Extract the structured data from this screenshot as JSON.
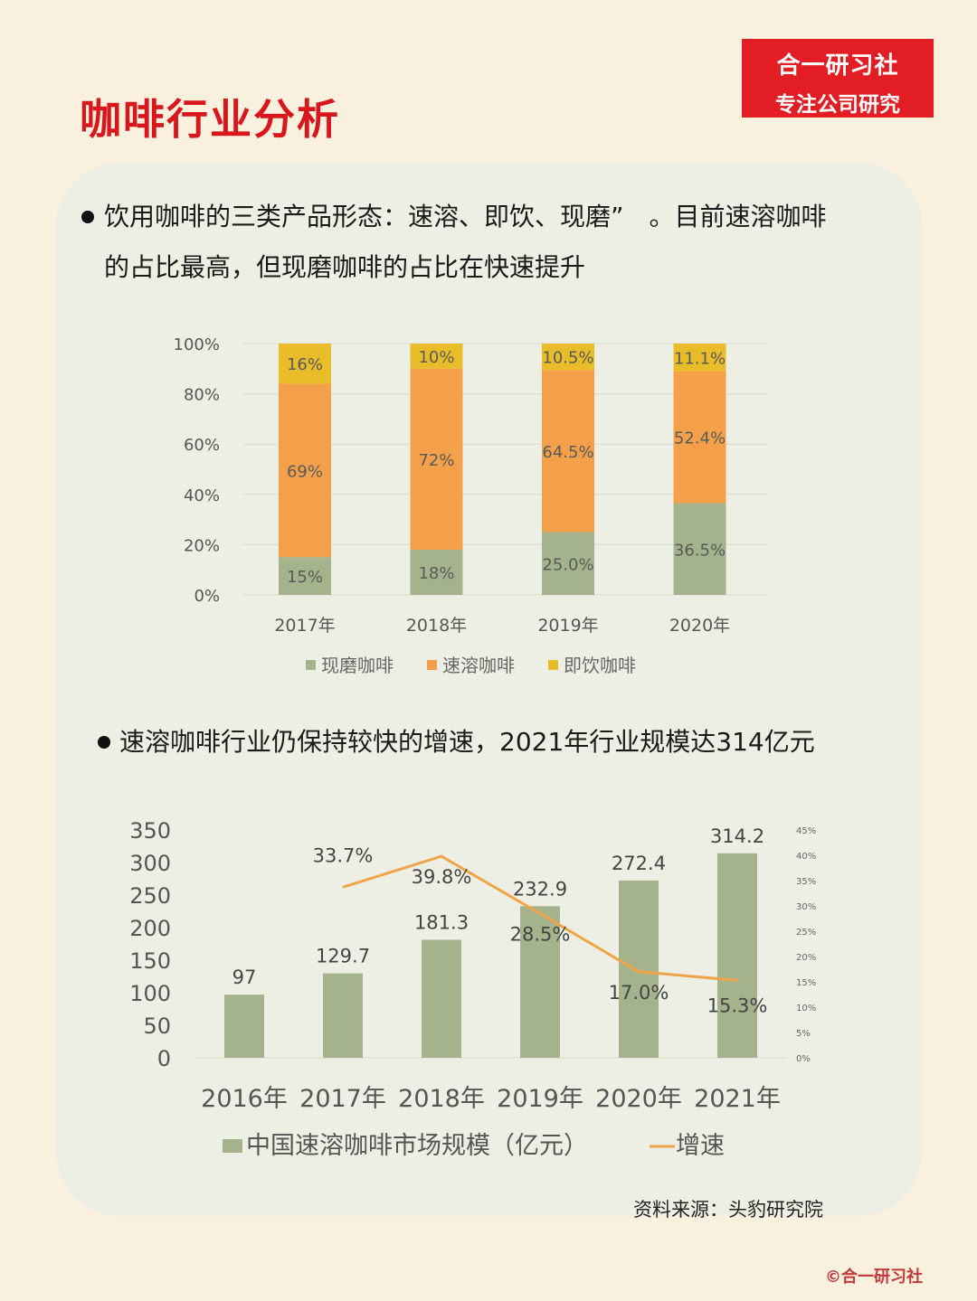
{
  "header": {
    "title": "咖啡行业分析",
    "brand_line1": "合一研习社",
    "brand_line2": "专注公司研究"
  },
  "section1": {
    "text_line1": "饮用咖啡的三类产品形态：速溶、即饮、现磨”　。目前速溶咖啡",
    "text_line2": "的占比最高，但现磨咖啡的占比在快速提升"
  },
  "section2": {
    "text": "速溶咖啡行业仍保持较快的增速，2021年行业规模达314亿元"
  },
  "footer": {
    "source": "资料来源：头豹研究院",
    "copyright": "©合一研习社"
  },
  "colors": {
    "accent_red": "#d9161c",
    "green": "#a4b38b",
    "orange": "#f4a04a",
    "yellow": "#e9bd2a",
    "line_orange": "#f0a347"
  },
  "chart_data": [
    {
      "type": "bar",
      "stacked": true,
      "percent_stacked": true,
      "categories": [
        "2017年",
        "2018年",
        "2019年",
        "2020年"
      ],
      "series": [
        {
          "name": "现磨咖啡",
          "values": [
            15,
            18,
            25.0,
            36.5
          ],
          "labels": [
            "15%",
            "18%",
            "25.0%",
            "36.5%"
          ],
          "color": "#a4b38b"
        },
        {
          "name": "速溶咖啡",
          "values": [
            69,
            72,
            64.5,
            52.4
          ],
          "labels": [
            "69%",
            "72%",
            "64.5%",
            "52.4%"
          ],
          "color": "#f4a04a"
        },
        {
          "name": "即饮咖啡",
          "values": [
            16,
            10,
            10.5,
            11.1
          ],
          "labels": [
            "16%",
            "10%",
            "10.5%",
            "11.1%"
          ],
          "color": "#e9bd2a"
        }
      ],
      "ylim": [
        0,
        100
      ],
      "yticks": [
        "0%",
        "20%",
        "40%",
        "60%",
        "80%",
        "100%"
      ],
      "grid": true,
      "legend": "bottom"
    },
    {
      "type": "bar",
      "categories": [
        "2016年",
        "2017年",
        "2018年",
        "2019年",
        "2020年",
        "2021年"
      ],
      "series": [
        {
          "name": "中国速溶咖啡市场规模（亿元）",
          "values": [
            97,
            129.7,
            181.3,
            232.9,
            272.4,
            314.2
          ],
          "labels": [
            "97",
            "129.7",
            "181.3",
            "232.9",
            "272.4",
            "314.2"
          ],
          "color": "#a4b38b"
        },
        {
          "name": "增速",
          "type": "line",
          "axis": "right",
          "values": [
            null,
            33.7,
            39.8,
            28.5,
            17.0,
            15.3
          ],
          "labels": [
            "",
            "33.7%",
            "39.8%",
            "28.5%",
            "17.0%",
            "15.3%"
          ],
          "color": "#f0a347"
        }
      ],
      "ylim": [
        0,
        350
      ],
      "yticks": [
        "0",
        "50",
        "100",
        "150",
        "200",
        "250",
        "300",
        "350"
      ],
      "y2lim": [
        0,
        45
      ],
      "y2ticks": [
        "0%",
        "5%",
        "10%",
        "15%",
        "20%",
        "25%",
        "30%",
        "35%",
        "40%",
        "45%"
      ],
      "legend": "bottom"
    }
  ]
}
